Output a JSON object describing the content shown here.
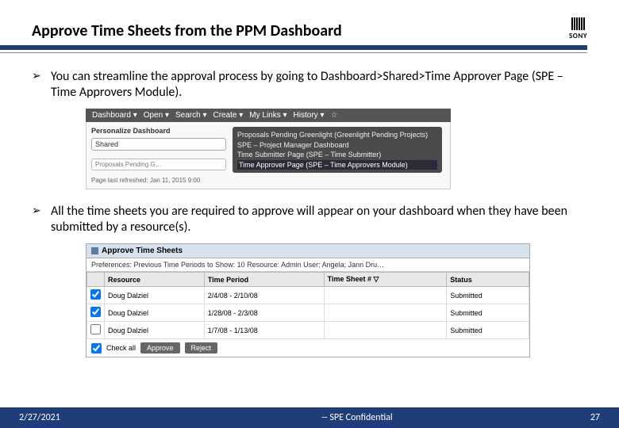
{
  "slide": {
    "title": "Approve Time Sheets from the PPM Dashboard",
    "logo_text": "SONY",
    "colors": {
      "accent": "#1f3e79",
      "menubar": "#555555",
      "flyout": "#4a4a4a",
      "panel_title_bg": "#d6e2ee"
    }
  },
  "bullets": [
    "You can streamline the approval process by going to Dashboard>Shared>Time Approver Page (SPE – Time Approvers Module).",
    "All the time sheets you are required to approve will appear on your dashboard when  they have been submitted by a resource(s)."
  ],
  "ss1": {
    "menu_items": [
      "Dashboard ▾",
      "Open ▾",
      "Search ▾",
      "Create ▾",
      "My Links ▾",
      "History ▾"
    ],
    "star": "☆",
    "personalize": "Personalize Dashboard",
    "shared_box": "Shared",
    "proposals_box": "Proposals Pending G…",
    "last_refreshed": "Page last refreshed: Jan 11, 2015 9:00",
    "flyout": [
      "Proposals Pending Greenlight (Greenlight Pending Projects)",
      "SPE – Project Manager Dashboard",
      "Time Submitter Page (SPE – Time Submitter)",
      "Time Approver Page (SPE – Time Approvers Module)"
    ]
  },
  "ss2": {
    "panel_title": "Approve Time Sheets",
    "prefs": "Preferences: Previous Time Periods to Show: 10  Resource: Admin User; Angela; Jann Dru…",
    "headers": {
      "resource": "Resource",
      "period": "Time Period",
      "sheet": "Time Sheet # ▽",
      "status": "Status"
    },
    "rows": [
      {
        "checked": true,
        "resource": "Doug Dalziel",
        "period": "2/4/08 - 2/10/08",
        "sheet": "",
        "status": "Submitted"
      },
      {
        "checked": true,
        "resource": "Doug Dalziel",
        "period": "1/28/08 - 2/3/08",
        "sheet": "",
        "status": "Submitted"
      },
      {
        "checked": false,
        "resource": "Doug Dalziel",
        "period": "1/7/08 - 1/13/08",
        "sheet": "",
        "status": "Submitted"
      }
    ],
    "footer": {
      "check_all": "Check all",
      "approve": "Approve",
      "reject": "Reject"
    }
  },
  "footer": {
    "date": "2/27/2021",
    "confidential": "-- SPE Confidential",
    "page": "27"
  }
}
